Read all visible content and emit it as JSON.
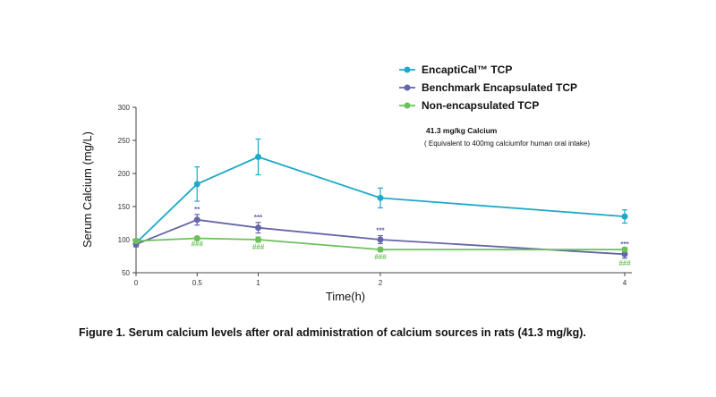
{
  "chart_data": {
    "type": "line",
    "xlabel": "Time(h)",
    "ylabel": "Serum Calcium (mg/L)",
    "ylim": [
      50,
      300
    ],
    "y_ticks": [
      50,
      100,
      150,
      200,
      250,
      300
    ],
    "x_ticks": [
      0,
      0.5,
      1,
      2,
      4
    ],
    "x_tick_labels": [
      "0",
      "0.5",
      "1",
      "2",
      "4"
    ],
    "grid": false,
    "legend_position": "top-right",
    "series": [
      {
        "name": "EncaptiCal™ TCP",
        "color": "#1fa8c9",
        "x": [
          0,
          0.5,
          1,
          2,
          4
        ],
        "values": [
          95,
          184,
          225,
          163,
          135
        ],
        "errors": [
          5,
          26,
          27,
          15,
          10
        ]
      },
      {
        "name": "Benchmark Encapsulated TCP",
        "color": "#6366a8",
        "x": [
          0,
          0.5,
          1,
          2,
          4
        ],
        "values": [
          93,
          130,
          118,
          100,
          78
        ],
        "errors": [
          4,
          8,
          8,
          6,
          6
        ]
      },
      {
        "name": "Non-encapsulated TCP",
        "color": "#6cc05a",
        "x": [
          0,
          0.5,
          1,
          2,
          4
        ],
        "values": [
          98,
          102,
          100,
          85,
          85
        ],
        "errors": [
          3,
          3,
          4,
          3,
          3
        ]
      }
    ],
    "annotations": [
      {
        "text": "**",
        "x": 0.5,
        "value": 142,
        "color": "#6366a8"
      },
      {
        "text": "***",
        "x": 1,
        "value": 130,
        "color": "#6366a8"
      },
      {
        "text": "***",
        "x": 2,
        "value": 110,
        "color": "#6366a8"
      },
      {
        "text": "***",
        "x": 4,
        "value": 89,
        "color": "#6366a8"
      },
      {
        "text": "###",
        "x": 0.5,
        "value": 90,
        "color": "#6cc05a"
      },
      {
        "text": "###",
        "x": 1,
        "value": 85,
        "color": "#6cc05a"
      },
      {
        "text": "###",
        "x": 2,
        "value": 70,
        "color": "#6cc05a"
      },
      {
        "text": "###",
        "x": 4,
        "value": 61,
        "color": "#6cc05a"
      }
    ],
    "note_title": "41.3 mg/kg Calcium",
    "note_subtitle": "( Equivalent to 400mg calciumfor human oral intake)"
  },
  "caption": "Figure 1. Serum calcium levels after oral administration of calcium sources in rats (41.3 mg/kg)."
}
